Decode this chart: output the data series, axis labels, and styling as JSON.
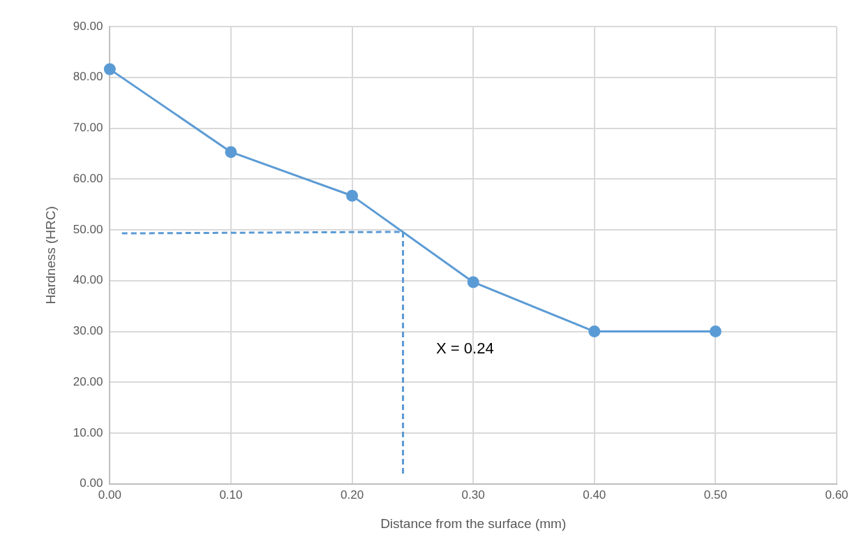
{
  "chart_data": {
    "type": "line",
    "xlabel": "Distance from the surface (mm)",
    "ylabel": "Hardness (HRC)",
    "xlim": [
      0,
      0.6
    ],
    "xticks": [
      {
        "value": 0,
        "label": "0.00"
      },
      {
        "value": 0.1,
        "label": "0.10"
      },
      {
        "value": 0.2,
        "label": "0.20"
      },
      {
        "value": 0.3,
        "label": "0.30"
      },
      {
        "value": 0.4,
        "label": "0.40"
      },
      {
        "value": 0.5,
        "label": "0.50"
      },
      {
        "value": 0.6,
        "label": "0.60"
      }
    ],
    "ylim": [
      0,
      90
    ],
    "yticks": [
      {
        "value": 0,
        "label": "0.00"
      },
      {
        "value": 10,
        "label": "10.00"
      },
      {
        "value": 20,
        "label": "20.00"
      },
      {
        "value": 30,
        "label": "30.00"
      },
      {
        "value": 40,
        "label": "40.00"
      },
      {
        "value": 50,
        "label": "50.00"
      },
      {
        "value": 60,
        "label": "60.00"
      },
      {
        "value": 70,
        "label": "70.00"
      },
      {
        "value": 80,
        "label": "80.00"
      },
      {
        "value": 90,
        "label": "90.00"
      }
    ],
    "grid": true,
    "series": [
      {
        "type": "line",
        "color": "#5b9bd5",
        "x": [
          0,
          0.1,
          0.2,
          0.3,
          0.4,
          0.5
        ],
        "values": [
          81.6,
          65.3,
          56.7,
          39.7,
          30,
          30
        ],
        "marker": "circle",
        "line_style": "solid"
      },
      {
        "type": "line",
        "color": "#5b9bd5",
        "x": [
          0.01,
          0.24
        ],
        "values": [
          49.3,
          49.6
        ],
        "marker": "none",
        "line_style": "dashed"
      },
      {
        "type": "line",
        "color": "#5b9bd5",
        "x": [
          0.242,
          0.242
        ],
        "values": [
          49.6,
          2
        ],
        "marker": "none",
        "line_style": "dashed"
      }
    ],
    "annotations": [
      "X = 0.24"
    ]
  }
}
